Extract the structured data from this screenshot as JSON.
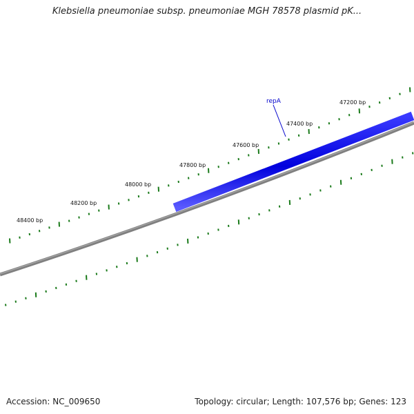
{
  "title": "Klebsiella pneumoniae subsp. pneumoniae MGH 78578 plasmid pK...",
  "footer": {
    "accession": "Accession: NC_009650",
    "summary": "Topology: circular; Length: 107,576 bp; Genes: 123"
  },
  "map": {
    "backbone_color": "#808080",
    "tick_color": "#1a7a1a",
    "tick_labels": [
      "47200 bp",
      "47400 bp",
      "47600 bp",
      "47800 bp",
      "48000 bp",
      "48200 bp",
      "48400 bp"
    ],
    "genes": [
      {
        "name": "repA",
        "color": "#0000cc"
      }
    ]
  }
}
